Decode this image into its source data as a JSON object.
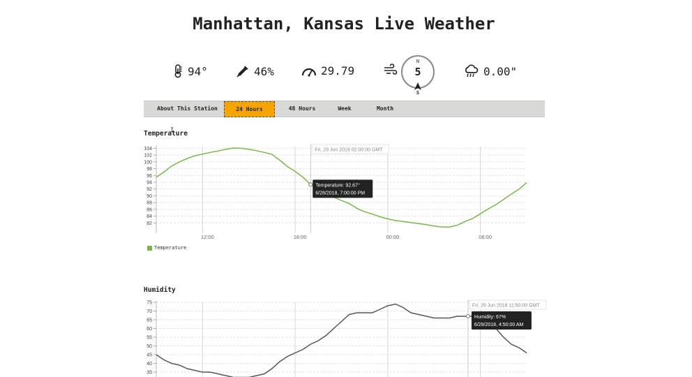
{
  "page": {
    "title": "Manhattan, Kansas Live Weather"
  },
  "current": {
    "temperature": "94°",
    "humidity": "46%",
    "pressure": "29.79",
    "wind": {
      "north_label": "N",
      "speed": "5",
      "direction_label": "S"
    },
    "rain": "0.00\""
  },
  "icons": {
    "temperature": "thermometer-icon",
    "humidity": "dropper-icon",
    "pressure": "gauge-icon",
    "wind": "wind-icon",
    "rain": "rain-cloud-icon"
  },
  "tabs": [
    {
      "label": "About This Station",
      "active": false
    },
    {
      "label": "24 Hours",
      "active": true
    },
    {
      "label": "48 Hours",
      "active": false
    },
    {
      "label": "Week",
      "active": false
    },
    {
      "label": "Month",
      "active": false
    }
  ],
  "colors": {
    "active_tab": "#f5a400",
    "temperature_line": "#7ab648",
    "humidity_line": "#555555"
  },
  "temperature_section": {
    "title": "Temperature"
  },
  "humidity_section": {
    "title": "Humidity"
  },
  "chart_data": [
    {
      "type": "line",
      "title": "Temperature",
      "xlabel": "",
      "ylabel": "",
      "x_ticks": [
        "12:00",
        "18:00",
        "00:00",
        "06:00"
      ],
      "y_ticks": [
        82,
        84,
        86,
        88,
        90,
        92,
        94,
        96,
        98,
        100,
        102,
        104
      ],
      "ylim": [
        80,
        104.5
      ],
      "xlim": [
        9,
        33
      ],
      "grid": true,
      "legend": "bottom-left",
      "legend_entries": [
        "Temperature"
      ],
      "series": [
        {
          "name": "Temperature",
          "color": "#7ab648",
          "x": [
            9,
            9.5,
            10,
            10.5,
            11,
            11.5,
            12,
            12.5,
            13,
            13.5,
            14,
            14.5,
            15,
            15.5,
            16,
            16.5,
            17,
            17.5,
            18,
            18.5,
            19,
            19.5,
            20,
            20.5,
            21,
            21.5,
            22,
            22.5,
            23,
            23.5,
            24,
            24.5,
            25,
            25.5,
            26,
            26.5,
            27,
            27.5,
            28,
            28.5,
            29,
            29.5,
            30,
            30.5,
            31,
            31.5,
            32,
            32.5,
            33
          ],
          "y": [
            95.5,
            97,
            98.8,
            100,
            101,
            101.8,
            102.3,
            102.8,
            103.2,
            103.7,
            104.1,
            104,
            103.7,
            103.3,
            102.8,
            102.2,
            100.5,
            98.6,
            97.2,
            95.5,
            93.3,
            91.9,
            90.5,
            89.6,
            88.6,
            87.7,
            86.3,
            85.3,
            84.6,
            83.8,
            83.2,
            82.7,
            82.4,
            82.1,
            81.8,
            81.5,
            81.1,
            80.8,
            80.8,
            81.3,
            82.4,
            83.3,
            84.7,
            86.1,
            87.4,
            88.9,
            90.5,
            91.9,
            93.9
          ]
        }
      ],
      "annotations": {
        "crosshair_time": "Fri, 29 Jun 2018 02:00:00 GMT",
        "tooltip_value": "Temperature: 92.67°",
        "tooltip_time": "6/28/2018, 7:00:00 PM"
      }
    },
    {
      "type": "line",
      "title": "Humidity",
      "xlabel": "",
      "ylabel": "",
      "y_ticks": [
        35,
        40,
        45,
        50,
        55,
        60,
        65,
        70,
        75
      ],
      "ylim": [
        33,
        75
      ],
      "xlim": [
        9,
        33
      ],
      "grid": true,
      "series": [
        {
          "name": "Humidity",
          "color": "#555555",
          "x": [
            9,
            9.5,
            10,
            10.5,
            11,
            11.5,
            12,
            12.5,
            13,
            13.5,
            14,
            14.5,
            15,
            15.5,
            16,
            16.5,
            17,
            17.5,
            18,
            18.5,
            19,
            19.5,
            20,
            20.5,
            21,
            21.5,
            22,
            22.5,
            23,
            23.5,
            24,
            24.5,
            25,
            25.5,
            26,
            26.5,
            27,
            27.5,
            28,
            28.5,
            29,
            29.5,
            30,
            30.5,
            31,
            31.5,
            32,
            32.5,
            33
          ],
          "y": [
            45,
            42,
            40,
            39,
            37,
            36,
            35,
            35,
            34,
            33,
            32,
            32,
            32,
            33,
            34,
            37,
            41,
            44,
            46,
            48,
            51,
            53,
            56,
            60,
            64,
            68,
            69,
            69,
            69,
            71,
            73,
            74,
            72,
            69,
            68,
            67,
            66,
            66,
            66,
            67,
            67,
            67,
            66,
            64,
            60,
            55,
            51,
            49,
            46
          ]
        }
      ],
      "annotations": {
        "crosshair_time": "Fri, 29 Jun 2018 11:50:00 GMT",
        "tooltip_value": "Humidity: 67%",
        "tooltip_time": "6/29/2018, 4:50:00 AM"
      }
    }
  ]
}
